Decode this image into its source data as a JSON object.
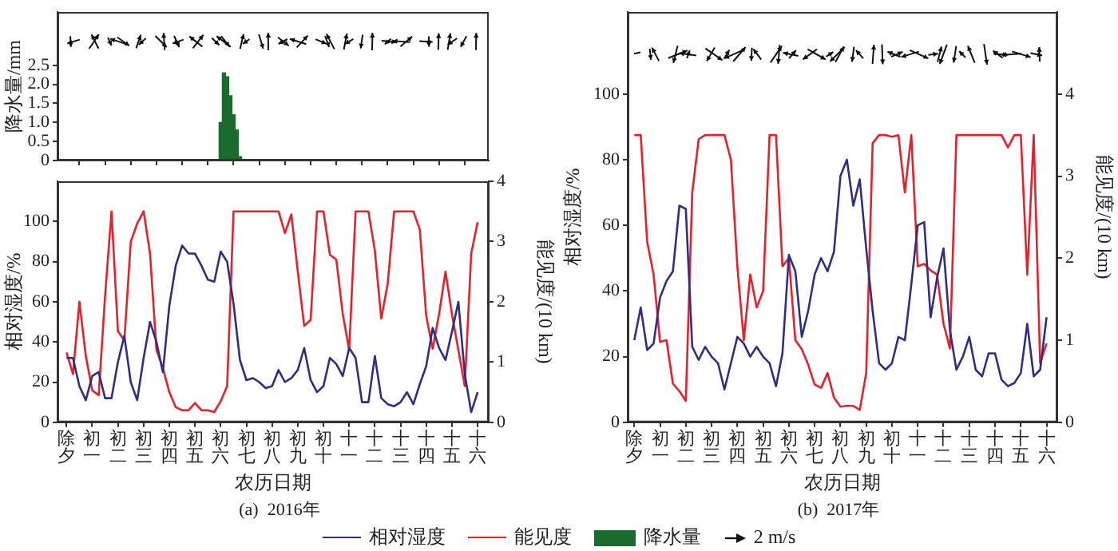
{
  "chart_data": [
    {
      "type": "bar",
      "ylabel": "降水量/mm",
      "legend": "bottom",
      "grid": false,
      "tick_labels": "y",
      "annotations": [
        "2 m/s"
      ],
      "categories": [
        "除夕",
        null,
        null,
        null,
        null,
        null,
        null,
        null,
        "初一",
        null,
        null,
        null,
        null,
        null,
        null,
        null,
        "初二",
        null,
        null,
        null,
        null,
        null,
        null,
        null,
        "初三",
        null,
        null,
        null,
        null,
        null,
        null,
        null,
        "初四",
        null,
        null,
        null,
        null,
        null,
        null,
        null,
        "初五",
        null,
        null,
        null,
        null,
        null,
        null,
        null,
        "初六",
        null,
        null,
        null,
        null,
        null,
        null,
        null,
        "初七",
        null,
        null,
        null,
        null,
        null,
        null,
        null,
        "初八",
        null,
        null,
        null,
        null,
        null,
        null,
        null,
        "初九",
        null,
        null,
        null,
        null,
        null,
        null,
        null,
        "初十",
        null,
        null,
        null,
        null,
        null,
        null,
        null,
        "十一",
        null,
        null,
        null,
        null,
        null,
        null,
        null,
        "十二",
        null,
        null,
        null,
        null,
        null,
        null,
        null,
        "十三",
        null,
        null,
        null,
        null,
        null,
        null,
        null,
        "十四",
        null,
        null,
        null,
        null,
        null,
        null,
        null,
        "十五",
        null,
        null,
        null,
        null,
        null,
        null,
        null,
        "十六"
      ],
      "ylim": [
        0,
        3.9
      ],
      "yticks": [
        0,
        0.5,
        {
          "value": 1,
          "label": "1.0"
        },
        1.5,
        {
          "value": 2,
          "label": "2.0"
        },
        2.5
      ],
      "series": [
        {
          "name": "降水量",
          "color": "#1b6b2f",
          "values": [
            0,
            0,
            0,
            0,
            0,
            0,
            0,
            0,
            0,
            0,
            0,
            0,
            0,
            0,
            0,
            0,
            0,
            0,
            0,
            0,
            0,
            0,
            0,
            0,
            0,
            0,
            0,
            0,
            0,
            0,
            0,
            0,
            0,
            0,
            0,
            0,
            0,
            0,
            0,
            0,
            0,
            0,
            0,
            0,
            0,
            0,
            0,
            0,
            1.0,
            2.3,
            2.2,
            1.7,
            1.2,
            0.8,
            0.1,
            0,
            0,
            0,
            0,
            0,
            0,
            0,
            0,
            0,
            0,
            0,
            0,
            0,
            0,
            0,
            0,
            0,
            0,
            0,
            0,
            0,
            0,
            0,
            0,
            0,
            0,
            0,
            0,
            0,
            0,
            0,
            0,
            0,
            0,
            0,
            0,
            0,
            0,
            0,
            0,
            0,
            0,
            0,
            0,
            0,
            0,
            0,
            0,
            0,
            0,
            0,
            0,
            0,
            0,
            0,
            0,
            0,
            0,
            0,
            0,
            0,
            0,
            0,
            0,
            0,
            0,
            0,
            0,
            0,
            0,
            0,
            0,
            0,
            0
          ]
        }
      ]
    },
    {
      "type": "line",
      "xlabel": "农历日期",
      "subtitle": "(a)  2016年",
      "ylabel": "相对湿度/%",
      "y2label": "能见度/(10 km)",
      "legend": "bottom",
      "grid": false,
      "marker": "none",
      "categories": [
        "除夕",
        null,
        null,
        null,
        "初一",
        null,
        null,
        null,
        "初二",
        null,
        null,
        null,
        "初三",
        null,
        null,
        null,
        "初四",
        null,
        null,
        null,
        "初五",
        null,
        null,
        null,
        "初六",
        null,
        null,
        null,
        "初七",
        null,
        null,
        null,
        "初八",
        null,
        null,
        null,
        "初九",
        null,
        null,
        null,
        "初十",
        null,
        null,
        null,
        "十一",
        null,
        null,
        null,
        "十二",
        null,
        null,
        null,
        "十三",
        null,
        null,
        null,
        "十四",
        null,
        null,
        null,
        "十五",
        null,
        null,
        null,
        "十六"
      ],
      "ylim": [
        0,
        120
      ],
      "yticks": [
        0,
        20,
        40,
        60,
        80,
        100
      ],
      "y2lim": [
        0,
        4
      ],
      "y2ticks": [
        0,
        1,
        2,
        3,
        4
      ],
      "series": [
        {
          "name": "相对湿度",
          "color": "#2e2d88",
          "values": [
            32,
            32,
            18,
            11,
            23,
            25,
            12,
            12,
            30,
            43,
            20,
            11,
            32,
            50,
            40,
            25,
            58,
            78,
            88,
            84,
            84,
            78,
            71,
            70,
            85,
            80,
            59,
            31,
            21,
            22,
            20,
            17,
            18,
            26,
            20,
            22,
            26,
            37,
            21,
            15,
            18,
            32,
            29,
            23,
            37,
            32,
            10,
            10,
            33,
            12,
            9,
            8,
            10,
            15,
            9,
            19,
            28,
            47,
            37,
            31,
            45,
            60,
            24,
            5,
            15
          ]
        },
        {
          "name": "能见度",
          "color": "#e62129",
          "axis": "y2",
          "values": [
            1.16,
            0.8,
            2.0,
            1.1,
            0.53,
            0.45,
            2.1,
            3.5,
            1.51,
            1.36,
            3.0,
            3.3,
            3.5,
            2.8,
            1.2,
            0.9,
            0.5,
            0.25,
            0.2,
            0.2,
            0.32,
            0.2,
            0.2,
            0.17,
            0.35,
            0.6,
            3.5,
            3.5,
            3.5,
            3.5,
            3.5,
            3.5,
            3.5,
            3.5,
            3.14,
            3.45,
            2.5,
            1.6,
            1.7,
            3.5,
            3.5,
            2.78,
            2.7,
            1.8,
            1.2,
            3.5,
            3.5,
            3.5,
            2.85,
            1.72,
            2.3,
            3.5,
            3.5,
            3.5,
            3.5,
            3.2,
            1.76,
            1.22,
            1.8,
            2.5,
            1.8,
            1.2,
            0.6,
            2.8,
            3.32
          ]
        }
      ]
    },
    {
      "type": "line",
      "xlabel": "农历日期",
      "subtitle": "(b)  2017年",
      "ylabel": "相对湿度/%",
      "y2label": "能见度/(10 km)",
      "legend": "bottom",
      "grid": false,
      "marker": "none",
      "categories": [
        "除夕",
        null,
        null,
        null,
        "初一",
        null,
        null,
        null,
        "初二",
        null,
        null,
        null,
        "初三",
        null,
        null,
        null,
        "初四",
        null,
        null,
        null,
        "初五",
        null,
        null,
        null,
        "初六",
        null,
        null,
        null,
        "初七",
        null,
        null,
        null,
        "初八",
        null,
        null,
        null,
        "初九",
        null,
        null,
        null,
        "初十",
        null,
        null,
        null,
        "十一",
        null,
        null,
        null,
        "十二",
        null,
        null,
        null,
        "十三",
        null,
        null,
        null,
        "十四",
        null,
        null,
        null,
        "十五",
        null,
        null,
        null,
        "十六"
      ],
      "ylim": [
        0,
        125
      ],
      "yticks": [
        0,
        20,
        40,
        60,
        80,
        100
      ],
      "y2lim": [
        0,
        5
      ],
      "y2ticks": [
        0,
        1,
        2,
        3,
        4
      ],
      "series": [
        {
          "name": "相对湿度",
          "color": "#2e2d88",
          "values": [
            25,
            35,
            22,
            24,
            38,
            43,
            46,
            66,
            65,
            23,
            19,
            23,
            20,
            18,
            10,
            18,
            26,
            24,
            20,
            23,
            20,
            18,
            11,
            21,
            51,
            46,
            26,
            34,
            45,
            50,
            46,
            52,
            75,
            80,
            66,
            74,
            53,
            34,
            18,
            16,
            18,
            26,
            25,
            42,
            60,
            61,
            32,
            44,
            53,
            28,
            16,
            20,
            26,
            16,
            14,
            21,
            21,
            13,
            11,
            12,
            15,
            30,
            14,
            16,
            32
          ]
        },
        {
          "name": "能见度",
          "color": "#e62129",
          "axis": "y2",
          "values": [
            3.5,
            3.5,
            2.2,
            1.8,
            0.98,
            1.0,
            0.47,
            0.38,
            0.26,
            2.8,
            3.45,
            3.5,
            3.5,
            3.5,
            3.5,
            3.2,
            1.9,
            1.0,
            1.8,
            1.4,
            1.6,
            3.5,
            3.5,
            1.9,
            2.0,
            1.0,
            0.89,
            0.7,
            0.46,
            0.42,
            0.6,
            0.3,
            0.19,
            0.2,
            0.2,
            0.15,
            0.6,
            3.4,
            3.5,
            3.5,
            3.48,
            3.5,
            2.8,
            3.5,
            1.9,
            1.93,
            1.85,
            1.8,
            1.2,
            0.9,
            3.5,
            3.5,
            3.5,
            3.5,
            3.5,
            3.5,
            3.5,
            3.5,
            3.35,
            3.5,
            3.5,
            1.8,
            3.5,
            0.72,
            0.96
          ]
        }
      ]
    }
  ]
}
